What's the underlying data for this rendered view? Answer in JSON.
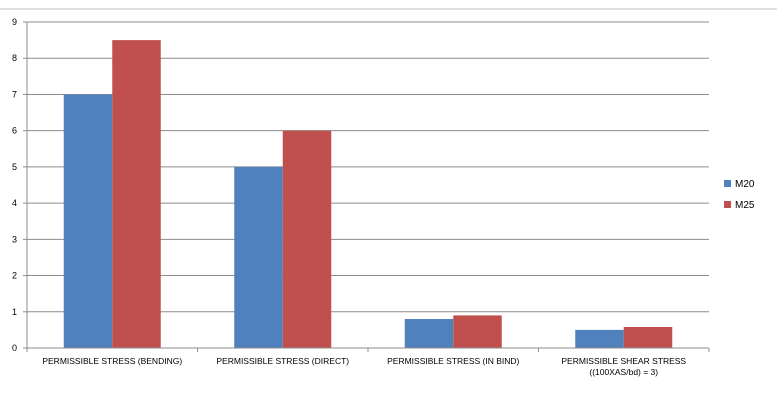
{
  "chart_data": {
    "type": "bar",
    "categories": [
      [
        "PERMISSIBLE STRESS (BENDING)"
      ],
      [
        "PERMISSIBLE STRESS (DIRECT)"
      ],
      [
        "PERMISSIBLE STRESS (IN BIND)"
      ],
      [
        "PERMISSIBLE SHEAR STRESS",
        "((100XAS/bd) = 3)"
      ]
    ],
    "series": [
      {
        "name": "M20",
        "color": "#4F81BD",
        "values": [
          7,
          5,
          0.8,
          0.5
        ]
      },
      {
        "name": "M25",
        "color": "#C0504D",
        "values": [
          8.5,
          6,
          0.9,
          0.58
        ]
      }
    ],
    "ylim": [
      0,
      9
    ],
    "yticks": [
      0,
      1,
      2,
      3,
      4,
      5,
      6,
      7,
      8,
      9
    ],
    "grid": true,
    "legend": "right"
  }
}
